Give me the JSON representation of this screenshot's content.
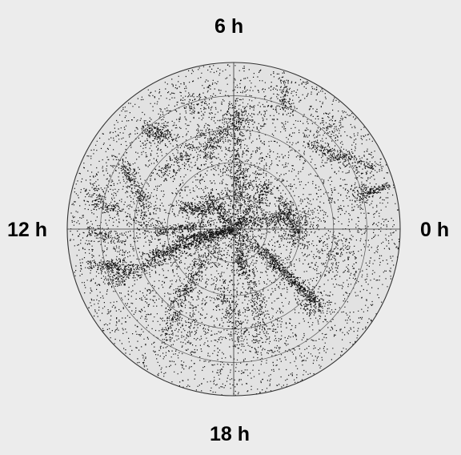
{
  "chart_data": {
    "type": "scatter",
    "projection": "polar",
    "title": "",
    "labels": {
      "top": "6 h",
      "right": "0 h",
      "bottom": "18 h",
      "left": "12 h"
    },
    "angular_axis": {
      "unit": "h",
      "range": [
        0,
        24
      ],
      "zero_direction": "right",
      "direction": "counterclockwise",
      "ticks": [
        0,
        6,
        12,
        18
      ]
    },
    "radial_axis": {
      "rings": 5,
      "tick_labels": "none shown"
    },
    "grid": true,
    "legend": "none",
    "colors": {
      "background": "#ececec",
      "disk": "#e2e2e2",
      "points": "#111111",
      "grid": "#555555"
    },
    "series": [
      {
        "values": "dense point cloud (thousands of points); individual values not legible; filament structures radiate from the centre"
      }
    ]
  }
}
